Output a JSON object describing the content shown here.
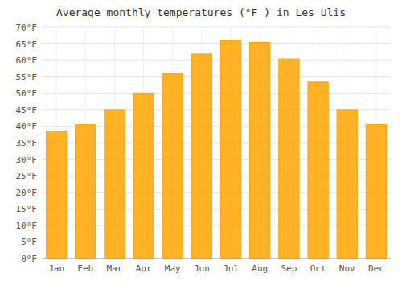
{
  "chart_data": {
    "type": "bar",
    "title": "Average monthly temperatures (°F ) in Les Ulis",
    "categories": [
      "Jan",
      "Feb",
      "Mar",
      "Apr",
      "May",
      "Jun",
      "Jul",
      "Aug",
      "Sep",
      "Oct",
      "Nov",
      "Dec"
    ],
    "values": [
      38.5,
      40.5,
      45.0,
      50.0,
      56.0,
      62.0,
      66.0,
      65.5,
      60.5,
      53.5,
      45.0,
      40.5
    ],
    "color": "#FFA500",
    "ylim": [
      0,
      70
    ],
    "yticks": [
      {
        "value": 0,
        "label": "0°F"
      },
      {
        "value": 5,
        "label": "5°F"
      },
      {
        "value": 10,
        "label": "10°F"
      },
      {
        "value": 15,
        "label": "15°F"
      },
      {
        "value": 20,
        "label": "20°F"
      },
      {
        "value": 25,
        "label": "25°F"
      },
      {
        "value": 30,
        "label": "30°F"
      },
      {
        "value": 35,
        "label": "35°F"
      },
      {
        "value": 40,
        "label": "40°F"
      },
      {
        "value": 45,
        "label": "45°F"
      },
      {
        "value": 50,
        "label": "50°F"
      },
      {
        "value": 55,
        "label": "55°F"
      },
      {
        "value": 60,
        "label": "60°F"
      },
      {
        "value": 65,
        "label": "65°F"
      },
      {
        "value": 70,
        "label": "70°F"
      }
    ],
    "grid": true
  }
}
